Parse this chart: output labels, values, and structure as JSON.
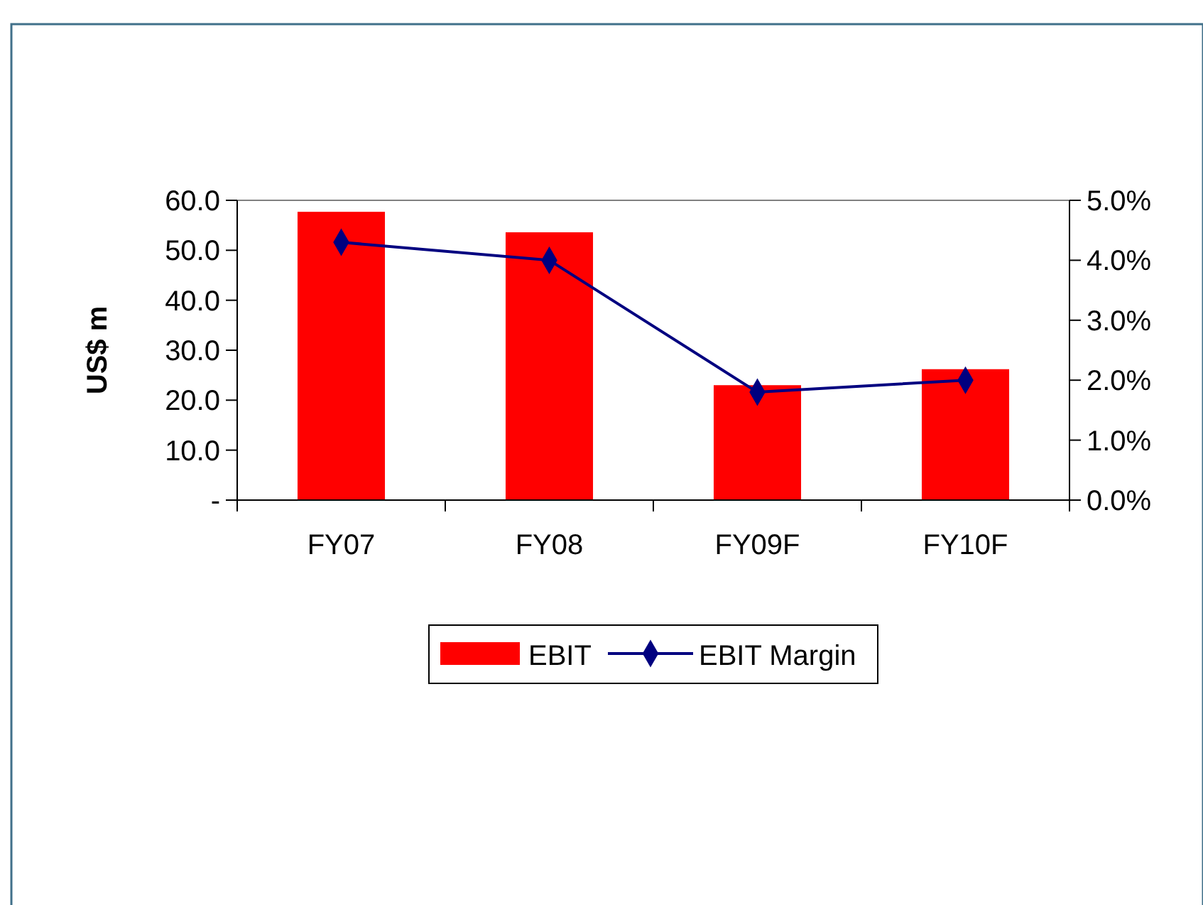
{
  "chart_data": {
    "type": "bar",
    "ylabel": "US$ m",
    "categories": [
      "FY07",
      "FY08",
      "FY09F",
      "FY10F"
    ],
    "series": [
      {
        "name": "EBIT",
        "color": "#ff0000",
        "values": [
          57.7,
          53.6,
          23.0,
          26.2
        ]
      },
      {
        "name": "EBIT Margin",
        "type": "line",
        "axis": "y2",
        "color": "#000080",
        "values": [
          4.3,
          4.0,
          1.8,
          2.0
        ]
      }
    ],
    "ylim": [
      0,
      60
    ],
    "yticks": [
      {
        "value": 0,
        "label": "-"
      },
      {
        "value": 10,
        "label": "10.0"
      },
      {
        "value": 20,
        "label": "20.0"
      },
      {
        "value": 30,
        "label": "30.0"
      },
      {
        "value": 40,
        "label": "40.0"
      },
      {
        "value": 50,
        "label": "50.0"
      },
      {
        "value": 60,
        "label": "60.0"
      }
    ],
    "y2lim": [
      0,
      5
    ],
    "y2ticks": [
      {
        "value": 0,
        "label": "0.0%"
      },
      {
        "value": 1,
        "label": "1.0%"
      },
      {
        "value": 2,
        "label": "2.0%"
      },
      {
        "value": 3,
        "label": "3.0%"
      },
      {
        "value": 4,
        "label": "4.0%"
      },
      {
        "value": 5,
        "label": "5.0%"
      }
    ],
    "marker": "diamond",
    "legend": "bottom"
  }
}
